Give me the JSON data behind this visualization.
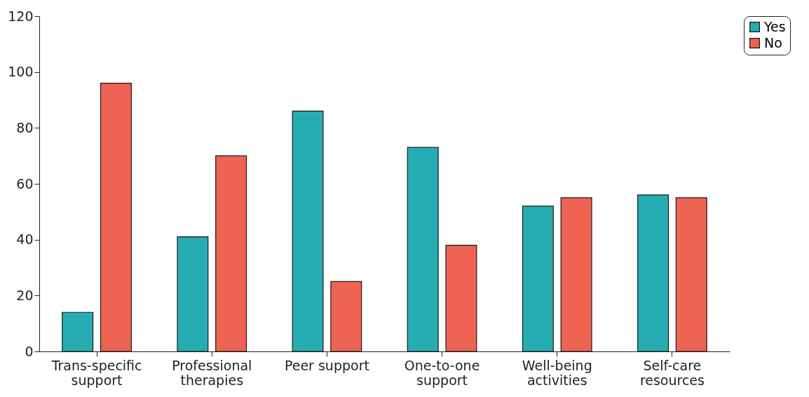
{
  "chart_data": {
    "type": "bar",
    "categories": [
      "Trans-specific support",
      "Professional therapies",
      "Peer support",
      "One-to-one support",
      "Well-being activities",
      "Self-care resources"
    ],
    "series": [
      {
        "name": "Yes",
        "color": "#26adb3",
        "values": [
          14,
          41,
          86,
          73,
          52,
          56
        ]
      },
      {
        "name": "No",
        "color": "#ee6352",
        "values": [
          96,
          70,
          25,
          38,
          55,
          55
        ]
      }
    ],
    "ylim": [
      0,
      120
    ],
    "yticks": [
      0,
      20,
      40,
      60,
      80,
      100,
      120
    ],
    "grid": false,
    "legend": "right"
  }
}
